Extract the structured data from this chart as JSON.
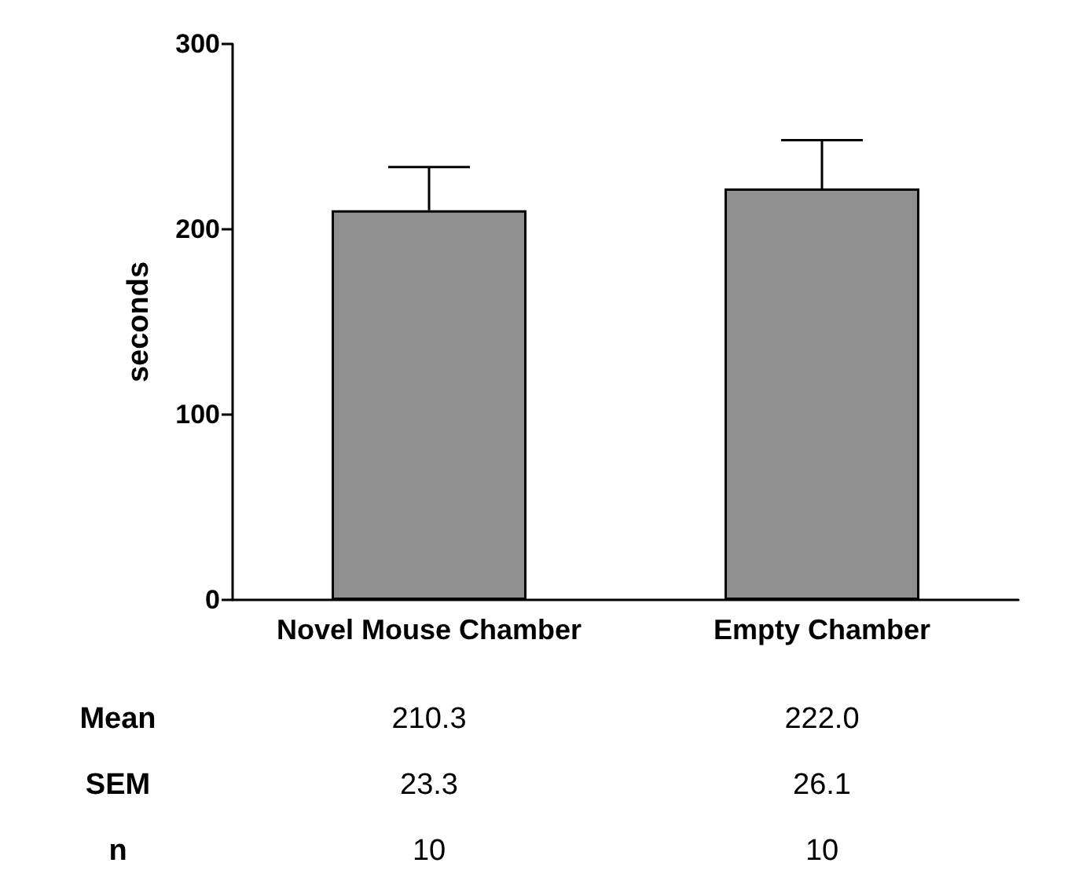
{
  "chart_data": {
    "type": "bar",
    "ylabel": "seconds",
    "categories": [
      "Novel Mouse Chamber",
      "Empty Chamber"
    ],
    "values": [
      210.3,
      222.0
    ],
    "value_labels": [
      "210.3",
      "222.0"
    ],
    "errors": [
      [
        210.3,
        233.6
      ],
      [
        222.0,
        248.1
      ]
    ],
    "color": "#909090",
    "ylim": [
      0,
      300
    ],
    "yticks": [
      0,
      100,
      200,
      300
    ],
    "grid": false,
    "annotations": [
      "Mean",
      "SEM",
      "n",
      "23.3",
      "26.1",
      "10",
      "10"
    ]
  }
}
